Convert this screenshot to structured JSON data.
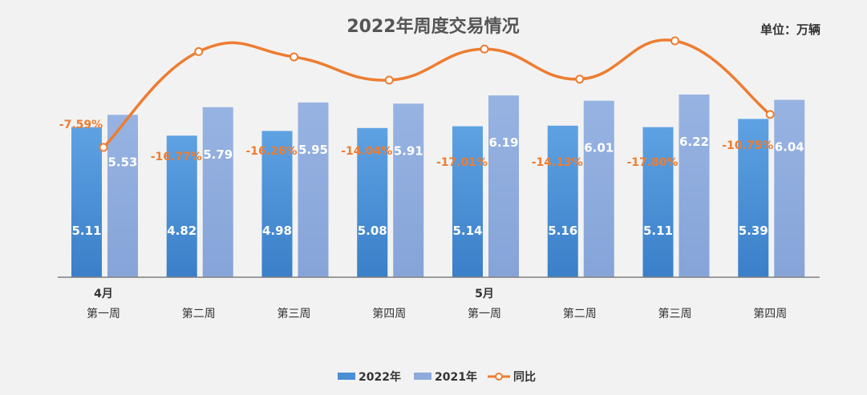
{
  "chart_data": {
    "type": "bar",
    "title": "2022年周度交易情况",
    "unit_label": "单位：万辆",
    "months": [
      {
        "label": "4月",
        "start_index": 0
      },
      {
        "label": "5月",
        "start_index": 4
      }
    ],
    "categories": [
      "第一周",
      "第二周",
      "第三周",
      "第四周",
      "第一周",
      "第二周",
      "第三周",
      "第四周"
    ],
    "series": [
      {
        "name": "2022年",
        "type": "bar",
        "color": "#4a8fd6",
        "values": [
          5.11,
          4.82,
          4.98,
          5.08,
          5.14,
          5.16,
          5.11,
          5.39
        ]
      },
      {
        "name": "2021年",
        "type": "bar",
        "color": "#8eaadc",
        "values": [
          5.53,
          5.79,
          5.95,
          5.91,
          6.19,
          6.01,
          6.22,
          6.04
        ]
      },
      {
        "name": "同比",
        "type": "line",
        "color": "#ed7d31",
        "values": [
          -7.59,
          -16.77,
          -16.26,
          -14.04,
          -17.01,
          -14.13,
          -17.8,
          -10.75
        ],
        "labels": [
          "-7.59%",
          "-16.77%",
          "-16.26%",
          "-14.04%",
          "-17.01%",
          "-14.13%",
          "-17.80%",
          "-10.75%"
        ]
      }
    ],
    "legend_position": "bottom",
    "grid": false
  }
}
